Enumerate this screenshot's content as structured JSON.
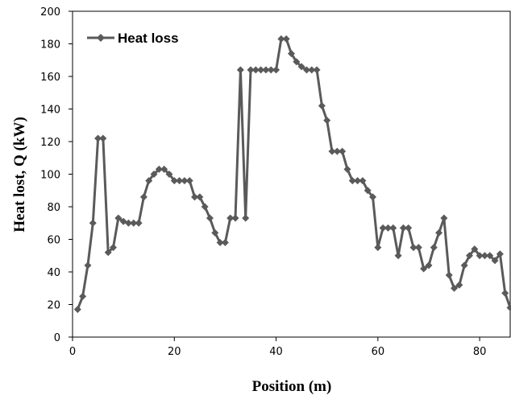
{
  "chart_data": {
    "type": "line",
    "xlabel": "Position (m)",
    "ylabel": "Heat lost, Q (kW)",
    "xlim": [
      0,
      86
    ],
    "ylim": [
      0,
      200
    ],
    "x_ticks": [
      0,
      20,
      40,
      60,
      80
    ],
    "y_ticks": [
      0,
      20,
      40,
      60,
      80,
      100,
      120,
      140,
      160,
      180,
      200
    ],
    "grid": false,
    "legend_position": "top-left",
    "series": [
      {
        "name": "Heat loss",
        "color": "#5a5a5a",
        "marker": "diamond",
        "x": [
          1,
          2,
          3,
          4,
          5,
          6,
          7,
          8,
          9,
          10,
          11,
          12,
          13,
          14,
          15,
          16,
          17,
          18,
          19,
          20,
          21,
          22,
          23,
          24,
          25,
          26,
          27,
          28,
          29,
          30,
          31,
          32,
          33,
          34,
          35,
          36,
          37,
          38,
          39,
          40,
          41,
          42,
          43,
          44,
          45,
          46,
          47,
          48,
          49,
          50,
          51,
          52,
          53,
          54,
          55,
          56,
          57,
          58,
          59,
          60,
          61,
          62,
          63,
          64,
          65,
          66,
          67,
          68,
          69,
          70,
          71,
          72,
          73,
          74,
          75,
          76,
          77,
          78,
          79,
          80,
          81,
          82,
          83,
          84,
          85,
          86
        ],
        "y": [
          17,
          25,
          44,
          70,
          122,
          122,
          52,
          55,
          73,
          71,
          70,
          70,
          70,
          86,
          96,
          100,
          103,
          103,
          100,
          96,
          96,
          96,
          96,
          86,
          86,
          80,
          73,
          64,
          58,
          58,
          73,
          73,
          164,
          73,
          164,
          164,
          164,
          164,
          164,
          164,
          183,
          183,
          174,
          169,
          166,
          164,
          164,
          164,
          142,
          133,
          114,
          114,
          114,
          103,
          96,
          96,
          96,
          90,
          86,
          55,
          67,
          67,
          67,
          50,
          67,
          67,
          55,
          55,
          42,
          44,
          55,
          64,
          73,
          38,
          30,
          32,
          44,
          50,
          54,
          50,
          50,
          50,
          47,
          51,
          27,
          18
        ]
      }
    ]
  }
}
